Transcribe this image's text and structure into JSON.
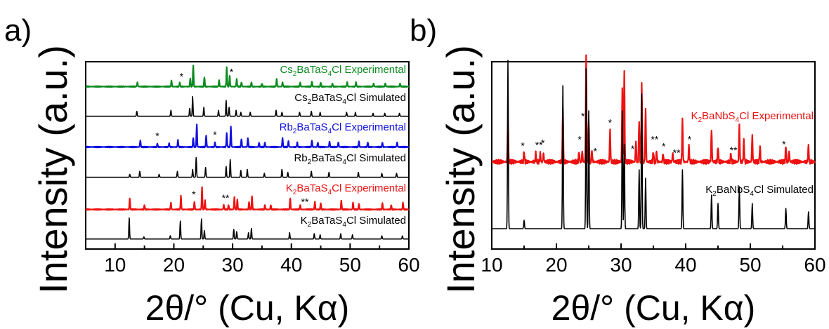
{
  "chart_data": [
    {
      "type": "line",
      "panel_label": "a)",
      "xlabel": "2θ/° (Cu, Kα)",
      "ylabel": "Intensity (a.u.)",
      "xlim": [
        5,
        60
      ],
      "xticks": [
        "10",
        "20",
        "30",
        "40",
        "50",
        "60"
      ],
      "grid": false,
      "series": [
        {
          "name": "Cs2BaTaS4Cl Experimental",
          "label_main": "Cs",
          "label_sub1": "2",
          "label_mid": "BaTaS",
          "label_sub2": "4",
          "label_end": "Cl Experimental",
          "color": "#0a8a1e",
          "baseline": 0.135,
          "peaks": [
            [
              13.8,
              0.2
            ],
            [
              19.6,
              0.3
            ],
            [
              21.0,
              0.2
            ],
            [
              22.8,
              0.4
            ],
            [
              23.3,
              1.0
            ],
            [
              25.2,
              0.45
            ],
            [
              27.7,
              0.3
            ],
            [
              29.0,
              0.9
            ],
            [
              29.5,
              0.5
            ],
            [
              30.7,
              0.35
            ],
            [
              31.5,
              0.2
            ],
            [
              33.2,
              0.2
            ],
            [
              35.0,
              0.15
            ],
            [
              37.5,
              0.35
            ],
            [
              38.5,
              0.2
            ],
            [
              41.5,
              0.2
            ],
            [
              43.5,
              0.25
            ],
            [
              45.0,
              0.2
            ],
            [
              47.0,
              0.15
            ],
            [
              49.5,
              0.2
            ],
            [
              51.0,
              0.2
            ],
            [
              54.0,
              0.15
            ],
            [
              56.0,
              0.15
            ],
            [
              58.5,
              0.15
            ]
          ],
          "stars": [
            [
              21.3,
              "*"
            ],
            [
              29.8,
              "*"
            ]
          ]
        },
        {
          "name": "Cs2BaTaS4Cl Simulated",
          "label_main": "Cs",
          "label_sub1": "2",
          "label_mid": "BaTaS",
          "label_sub2": "4",
          "label_end": "Cl Simulated",
          "color": "#000000",
          "baseline": 0.075,
          "peaks": [
            [
              13.7,
              0.25
            ],
            [
              19.5,
              0.3
            ],
            [
              22.7,
              0.4
            ],
            [
              23.2,
              1.0
            ],
            [
              25.1,
              0.45
            ],
            [
              27.6,
              0.3
            ],
            [
              28.9,
              0.8
            ],
            [
              29.4,
              0.45
            ],
            [
              30.6,
              0.3
            ],
            [
              31.4,
              0.2
            ],
            [
              33.0,
              0.2
            ],
            [
              37.4,
              0.3
            ],
            [
              38.4,
              0.2
            ],
            [
              41.4,
              0.2
            ],
            [
              43.4,
              0.25
            ],
            [
              44.9,
              0.2
            ],
            [
              49.4,
              0.2
            ],
            [
              50.9,
              0.2
            ],
            [
              53.9,
              0.15
            ],
            [
              55.9,
              0.15
            ],
            [
              58.4,
              0.15
            ]
          ],
          "stars": []
        },
        {
          "name": "Rb2BaTaS4Cl Experimental",
          "label_main": "Rb",
          "label_sub1": "2",
          "label_mid": "BaTaS",
          "label_sub2": "4",
          "label_end": "Cl Experimental",
          "color": "#1010e0",
          "baseline": 0.105,
          "peaks": [
            [
              14.3,
              0.3
            ],
            [
              17.2,
              0.15
            ],
            [
              19.2,
              0.15
            ],
            [
              20.7,
              0.3
            ],
            [
              23.3,
              0.4
            ],
            [
              23.9,
              1.0
            ],
            [
              25.5,
              0.5
            ],
            [
              27.0,
              0.2
            ],
            [
              29.0,
              0.6
            ],
            [
              29.7,
              0.9
            ],
            [
              31.5,
              0.35
            ],
            [
              32.6,
              0.4
            ],
            [
              34.5,
              0.2
            ],
            [
              35.5,
              0.2
            ],
            [
              38.5,
              0.4
            ],
            [
              39.5,
              0.25
            ],
            [
              41.0,
              0.2
            ],
            [
              43.5,
              0.3
            ],
            [
              44.5,
              0.2
            ],
            [
              46.5,
              0.25
            ],
            [
              48.0,
              0.2
            ],
            [
              51.5,
              0.25
            ],
            [
              53.0,
              0.2
            ],
            [
              55.5,
              0.2
            ],
            [
              58.0,
              0.2
            ]
          ],
          "stars": [
            [
              17.2,
              "*"
            ],
            [
              27.0,
              "*"
            ]
          ]
        },
        {
          "name": "Rb2BaTaS4Cl Simulated",
          "label_main": "Rb",
          "label_sub1": "2",
          "label_mid": "BaTaS",
          "label_sub2": "4",
          "label_end": "Cl Simulated",
          "color": "#000000",
          "baseline": 0.075,
          "peaks": [
            [
              12.5,
              0.15
            ],
            [
              14.2,
              0.3
            ],
            [
              17.5,
              0.15
            ],
            [
              20.6,
              0.3
            ],
            [
              23.2,
              0.4
            ],
            [
              23.8,
              1.0
            ],
            [
              25.4,
              0.5
            ],
            [
              28.9,
              0.55
            ],
            [
              29.6,
              0.9
            ],
            [
              31.4,
              0.35
            ],
            [
              32.5,
              0.4
            ],
            [
              35.4,
              0.2
            ],
            [
              38.4,
              0.4
            ],
            [
              39.4,
              0.25
            ],
            [
              43.4,
              0.3
            ],
            [
              46.4,
              0.25
            ],
            [
              51.4,
              0.25
            ],
            [
              55.4,
              0.2
            ],
            [
              57.9,
              0.2
            ]
          ],
          "stars": []
        },
        {
          "name": "K2BaTaS4Cl Experimental",
          "label_main": "K",
          "label_sub1": "2",
          "label_mid": "BaTaS",
          "label_sub2": "4",
          "label_end": "Cl Experimental",
          "color": "#ee1111",
          "baseline": 0.08,
          "peaks": [
            [
              12.5,
              0.5
            ],
            [
              15.0,
              0.2
            ],
            [
              19.5,
              0.3
            ],
            [
              21.2,
              0.6
            ],
            [
              23.5,
              0.35
            ],
            [
              24.8,
              1.0
            ],
            [
              25.3,
              0.4
            ],
            [
              28.5,
              0.2
            ],
            [
              29.3,
              0.2
            ],
            [
              30.3,
              0.55
            ],
            [
              30.8,
              0.45
            ],
            [
              32.8,
              0.35
            ],
            [
              33.3,
              0.6
            ],
            [
              35.5,
              0.2
            ],
            [
              36.5,
              0.2
            ],
            [
              39.8,
              0.5
            ],
            [
              41.5,
              0.2
            ],
            [
              44.0,
              0.35
            ],
            [
              45.0,
              0.3
            ],
            [
              48.5,
              0.4
            ],
            [
              50.5,
              0.3
            ],
            [
              51.5,
              0.25
            ],
            [
              55.5,
              0.3
            ],
            [
              57.0,
              0.2
            ],
            [
              59.0,
              0.3
            ]
          ],
          "stars": [
            [
              23.4,
              "*"
            ],
            [
              28.8,
              "**"
            ],
            [
              42.3,
              "**"
            ]
          ]
        },
        {
          "name": "K2BaTaS4Cl Simulated",
          "label_main": "K",
          "label_sub1": "2",
          "label_mid": "BaTaS",
          "label_sub2": "4",
          "label_end": "Cl Simulated",
          "color": "#000000",
          "baseline": 0.075,
          "peaks": [
            [
              12.4,
              1.0
            ],
            [
              14.9,
              0.1
            ],
            [
              19.4,
              0.15
            ],
            [
              21.1,
              0.85
            ],
            [
              24.7,
              0.95
            ],
            [
              25.2,
              0.4
            ],
            [
              30.2,
              0.45
            ],
            [
              30.7,
              0.35
            ],
            [
              32.7,
              0.3
            ],
            [
              33.2,
              0.5
            ],
            [
              39.7,
              0.3
            ],
            [
              43.9,
              0.25
            ],
            [
              44.9,
              0.2
            ],
            [
              48.4,
              0.25
            ],
            [
              50.4,
              0.2
            ],
            [
              55.4,
              0.15
            ],
            [
              58.9,
              0.15
            ]
          ],
          "stars": []
        }
      ]
    },
    {
      "type": "line",
      "panel_label": "b)",
      "xlabel": "2θ/° (Cu, Kα)",
      "ylabel": "Intensity (a.u.)",
      "xlim": [
        10,
        60
      ],
      "xticks": [
        "10",
        "20",
        "30",
        "40",
        "50",
        "60"
      ],
      "grid": false,
      "series": [
        {
          "name": "K2BaNbS4Cl Experimental",
          "label_main": "K",
          "label_sub1": "2",
          "label_mid": "BaNbS",
          "label_sub2": "4",
          "label_end": "Cl Experimental",
          "color": "#ee1111",
          "baseline": 0.06,
          "peaks": [
            [
              12.5,
              0.4
            ],
            [
              15.0,
              0.1
            ],
            [
              16.8,
              0.08
            ],
            [
              17.5,
              0.08
            ],
            [
              18.0,
              0.08
            ],
            [
              21.0,
              0.5
            ],
            [
              23.5,
              0.1
            ],
            [
              24.0,
              0.1
            ],
            [
              24.6,
              1.0
            ],
            [
              25.0,
              0.4
            ],
            [
              25.5,
              0.1
            ],
            [
              28.3,
              0.3
            ],
            [
              30.2,
              0.7
            ],
            [
              30.5,
              0.85
            ],
            [
              32.3,
              0.2
            ],
            [
              32.8,
              0.4
            ],
            [
              33.2,
              0.75
            ],
            [
              33.8,
              0.5
            ],
            [
              35.0,
              0.1
            ],
            [
              35.5,
              0.1
            ],
            [
              36.5,
              0.08
            ],
            [
              38.0,
              0.08
            ],
            [
              39.5,
              0.4
            ],
            [
              40.5,
              0.15
            ],
            [
              44.0,
              0.3
            ],
            [
              45.0,
              0.15
            ],
            [
              47.0,
              0.08
            ],
            [
              48.3,
              0.35
            ],
            [
              49.0,
              0.2
            ],
            [
              50.3,
              0.25
            ],
            [
              51.5,
              0.15
            ],
            [
              55.5,
              0.15
            ],
            [
              56.0,
              0.1
            ],
            [
              59.0,
              0.15
            ]
          ],
          "stars": [
            [
              14.8,
              "*"
            ],
            [
              17.3,
              "**"
            ],
            [
              17.9,
              "*"
            ],
            [
              23.6,
              "*"
            ],
            [
              24.1,
              "*"
            ],
            [
              26.0,
              "*"
            ],
            [
              28.3,
              "*"
            ],
            [
              31.8,
              "*"
            ],
            [
              35.2,
              "**"
            ],
            [
              36.6,
              "*"
            ],
            [
              38.6,
              "**"
            ],
            [
              40.6,
              "*"
            ],
            [
              47.4,
              "**"
            ],
            [
              55.2,
              "*"
            ]
          ]
        },
        {
          "name": "K2BaNbS4Cl Simulated",
          "label_main": "K",
          "label_sub1": "2",
          "label_mid": "BaNbS",
          "label_sub2": "4",
          "label_end": "Cl Simulated",
          "color": "#000000",
          "baseline": 0.0,
          "peaks": [
            [
              12.5,
              1.0
            ],
            [
              15.0,
              0.05
            ],
            [
              21.0,
              0.85
            ],
            [
              24.6,
              0.95
            ],
            [
              25.0,
              0.7
            ],
            [
              30.2,
              0.7
            ],
            [
              30.5,
              0.5
            ],
            [
              32.8,
              0.35
            ],
            [
              33.2,
              0.8
            ],
            [
              33.8,
              0.3
            ],
            [
              39.5,
              0.35
            ],
            [
              44.0,
              0.2
            ],
            [
              45.0,
              0.15
            ],
            [
              48.3,
              0.25
            ],
            [
              50.3,
              0.15
            ],
            [
              55.5,
              0.12
            ],
            [
              59.0,
              0.1
            ]
          ],
          "stars": []
        }
      ]
    }
  ]
}
